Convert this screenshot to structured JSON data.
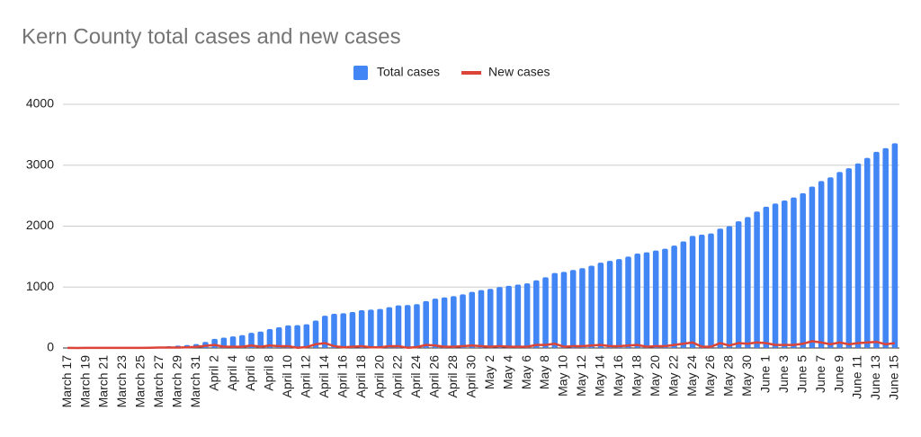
{
  "chart_data": {
    "type": "bar_line",
    "title": "Kern County total cases and new cases",
    "categories": [
      "March 17",
      null,
      "March 19",
      null,
      "March 21",
      null,
      "March 23",
      null,
      "March 25",
      null,
      "March 27",
      null,
      "March 29",
      null,
      "March 31",
      null,
      "April 2",
      null,
      "April 4",
      null,
      "April 6",
      null,
      "April 8",
      null,
      "April 10",
      null,
      "April 12",
      null,
      "April 14",
      null,
      "April 16",
      null,
      "April 18",
      null,
      "April 20",
      null,
      "April 22",
      null,
      "April 24",
      null,
      "April 26",
      null,
      "April 28",
      null,
      "April 30",
      null,
      "May 2",
      null,
      "May 4",
      null,
      "May 6",
      null,
      "May 8",
      null,
      "May 10",
      null,
      "May 12",
      null,
      "May 14",
      null,
      "May 16",
      null,
      "May 18",
      null,
      "May 20",
      null,
      "May 22",
      null,
      "May 24",
      null,
      "May 26",
      null,
      "May 28",
      null,
      "May 30",
      null,
      "June 1",
      null,
      "June 3",
      null,
      "June 5",
      null,
      "June 7",
      null,
      "June 9",
      null,
      "June 11",
      null,
      "June 13",
      null,
      "June 15"
    ],
    "series": [
      {
        "name": "Total cases",
        "type": "bar",
        "color": "#4285f4",
        "values": [
          1,
          1,
          2,
          3,
          4,
          5,
          6,
          8,
          10,
          14,
          22,
          30,
          38,
          48,
          65,
          100,
          150,
          170,
          190,
          210,
          250,
          270,
          310,
          340,
          370,
          375,
          390,
          450,
          530,
          560,
          570,
          590,
          620,
          630,
          640,
          670,
          700,
          705,
          720,
          770,
          810,
          830,
          850,
          880,
          920,
          950,
          970,
          1000,
          1020,
          1040,
          1060,
          1110,
          1160,
          1230,
          1250,
          1280,
          1310,
          1350,
          1400,
          1430,
          1460,
          1500,
          1550,
          1570,
          1600,
          1630,
          1680,
          1750,
          1840,
          1860,
          1880,
          1960,
          2000,
          2080,
          2150,
          2240,
          2320,
          2370,
          2420,
          2470,
          2540,
          2650,
          2740,
          2800,
          2890,
          2950,
          3030,
          3120,
          3220,
          3280,
          3360
        ]
      },
      {
        "name": "New cases",
        "type": "line",
        "color": "#db4437",
        "values": [
          1,
          0,
          1,
          1,
          1,
          1,
          1,
          2,
          2,
          4,
          8,
          8,
          8,
          10,
          17,
          35,
          50,
          20,
          20,
          20,
          40,
          20,
          40,
          30,
          30,
          5,
          15,
          60,
          80,
          30,
          10,
          20,
          30,
          10,
          10,
          30,
          30,
          5,
          15,
          50,
          40,
          20,
          20,
          30,
          40,
          30,
          20,
          30,
          20,
          20,
          20,
          50,
          50,
          70,
          20,
          30,
          30,
          40,
          50,
          30,
          30,
          40,
          50,
          20,
          30,
          30,
          50,
          70,
          90,
          20,
          20,
          80,
          40,
          80,
          70,
          90,
          80,
          50,
          50,
          50,
          70,
          110,
          90,
          60,
          90,
          60,
          80,
          90,
          100,
          60,
          80
        ]
      }
    ],
    "ylim": [
      0,
      4000
    ],
    "yticks": [
      0,
      1000,
      2000,
      3000,
      4000
    ],
    "grid": true,
    "legend": "top"
  }
}
